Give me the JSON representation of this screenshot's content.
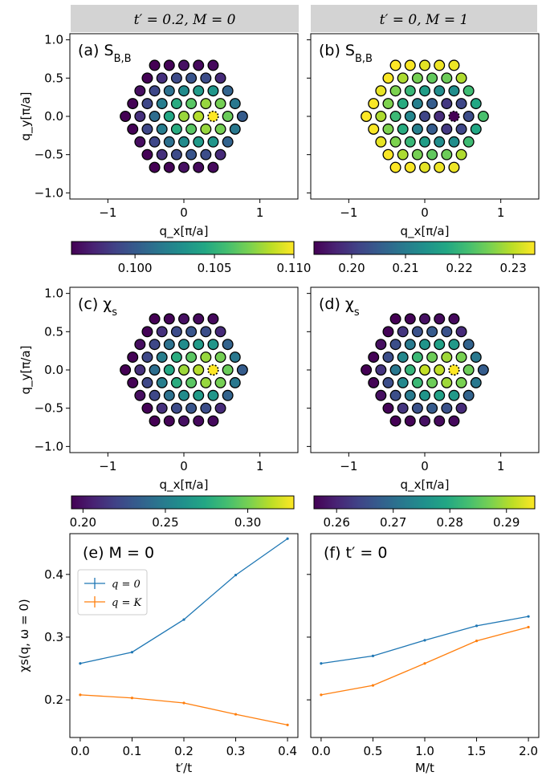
{
  "headers": {
    "left": "t′ = 0.2, M = 0",
    "right": "t′ = 0, M = 1"
  },
  "chart_data": [
    {
      "type": "scatter",
      "id": "a",
      "panel_label": "(a) S",
      "panel_sub": "B,B",
      "xlabel": "q_x[π/a]",
      "ylabel": "q_y[π/a]",
      "xlim": [
        -1.5,
        1.5
      ],
      "ylim": [
        -1.08,
        1.08
      ],
      "xticks": [
        "−1",
        "0",
        "1"
      ],
      "yticks": [
        "1.0",
        "0.5",
        "0.0",
        "−0.5",
        "−1.0"
      ],
      "colorscale": "viridis",
      "color_range": [
        0.096,
        0.11
      ],
      "colorbar_ticks": [
        "0.100",
        "0.105",
        "0.110"
      ],
      "colorbar_tick_values": [
        0.1,
        0.105,
        0.11
      ],
      "center_value": 0.11,
      "gamma_value": 0.107,
      "k_value": 0.096,
      "m_value": 0.099
    },
    {
      "type": "scatter",
      "id": "b",
      "panel_label": "(b) S",
      "panel_sub": "B,B",
      "xlabel": "q_x[π/a]",
      "ylabel": "",
      "xlim": [
        -1.5,
        1.5
      ],
      "ylim": [
        -1.08,
        1.08
      ],
      "xticks": [
        "−1",
        "0",
        "1"
      ],
      "yticks": [],
      "colorscale": "viridis",
      "color_range": [
        0.193,
        0.234
      ],
      "colorbar_ticks": [
        "0.20",
        "0.21",
        "0.22",
        "0.23"
      ],
      "colorbar_tick_values": [
        0.2,
        0.21,
        0.22,
        0.23
      ],
      "center_value": 0.193,
      "gamma_value": 0.205,
      "k_value": 0.234,
      "m_value": 0.226
    },
    {
      "type": "scatter",
      "id": "c",
      "panel_label": "(c) χ",
      "panel_sub": "s",
      "xlabel": "q_x[π/a]",
      "ylabel": "q_y[π/a]",
      "xlim": [
        -1.5,
        1.5
      ],
      "ylim": [
        -1.08,
        1.08
      ],
      "xticks": [
        "−1",
        "0",
        "1"
      ],
      "yticks": [
        "1.0",
        "0.5",
        "0.0",
        "−0.5",
        "−1.0"
      ],
      "colorscale": "viridis",
      "color_range": [
        0.193,
        0.328
      ],
      "colorbar_ticks": [
        "0.20",
        "0.25",
        "0.30"
      ],
      "colorbar_tick_values": [
        0.2,
        0.25,
        0.3
      ],
      "center_value": 0.328,
      "gamma_value": 0.3,
      "k_value": 0.193,
      "m_value": 0.215
    },
    {
      "type": "scatter",
      "id": "d",
      "panel_label": "(d) χ",
      "panel_sub": "s",
      "xlabel": "q_x[π/a]",
      "ylabel": "",
      "xlim": [
        -1.5,
        1.5
      ],
      "ylim": [
        -1.08,
        1.08
      ],
      "xticks": [
        "−1",
        "0",
        "1"
      ],
      "yticks": [],
      "colorscale": "viridis",
      "color_range": [
        0.256,
        0.295
      ],
      "colorbar_ticks": [
        "0.26",
        "0.27",
        "0.28",
        "0.29"
      ],
      "colorbar_tick_values": [
        0.26,
        0.27,
        0.28,
        0.29
      ],
      "center_value": 0.295,
      "gamma_value": 0.29,
      "k_value": 0.256,
      "m_value": 0.262
    },
    {
      "type": "line",
      "id": "e",
      "panel_label": "(e) M = 0",
      "xlabel": "t′/t",
      "ylabel": "χs(q, ω = 0)",
      "xlim": [
        -0.02,
        0.42
      ],
      "ylim": [
        0.14,
        0.465
      ],
      "xticks": [
        "0.0",
        "0.1",
        "0.2",
        "0.3",
        "0.4"
      ],
      "xtick_values": [
        0.0,
        0.1,
        0.2,
        0.3,
        0.4
      ],
      "yticks": [
        "0.2",
        "0.3",
        "0.4"
      ],
      "ytick_values": [
        0.2,
        0.3,
        0.4
      ],
      "legend": "upper-left",
      "series": [
        {
          "name": "q = 0",
          "color": "#1f77b4",
          "x": [
            0.0,
            0.1,
            0.2,
            0.3,
            0.4
          ],
          "y": [
            0.258,
            0.276,
            0.328,
            0.399,
            0.457
          ]
        },
        {
          "name": "q = K",
          "color": "#ff7f0e",
          "x": [
            0.0,
            0.1,
            0.2,
            0.3,
            0.4
          ],
          "y": [
            0.208,
            0.203,
            0.195,
            0.177,
            0.16
          ]
        }
      ]
    },
    {
      "type": "line",
      "id": "f",
      "panel_label": "(f) t′ = 0",
      "xlabel": "M/t",
      "ylabel": "",
      "xlim": [
        -0.1,
        2.1
      ],
      "ylim": [
        0.14,
        0.465
      ],
      "xticks": [
        "0.0",
        "0.5",
        "1.0",
        "1.5",
        "2.0"
      ],
      "xtick_values": [
        0.0,
        0.5,
        1.0,
        1.5,
        2.0
      ],
      "yticks": [],
      "ytick_values": [],
      "series": [
        {
          "name": "q = 0",
          "color": "#1f77b4",
          "x": [
            0.0,
            0.5,
            1.0,
            1.5,
            2.0
          ],
          "y": [
            0.258,
            0.27,
            0.295,
            0.318,
            0.333
          ]
        },
        {
          "name": "q = K",
          "color": "#ff7f0e",
          "x": [
            0.0,
            0.5,
            1.0,
            1.5,
            2.0
          ],
          "y": [
            0.208,
            0.223,
            0.258,
            0.294,
            0.316
          ]
        }
      ]
    }
  ]
}
